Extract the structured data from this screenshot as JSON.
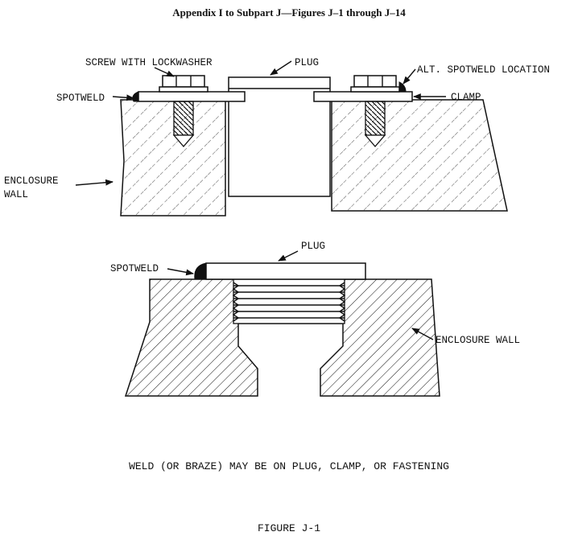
{
  "heading": "Appendix I to Subpart J—Figures J–1 through J–14",
  "upper_figure": {
    "labels": {
      "screw": "SCREW WITH LOCKWASHER",
      "plug": "PLUG",
      "alt_spotweld": "ALT. SPOTWELD LOCATION",
      "spotweld": "SPOTWELD",
      "clamp": "CLAMP",
      "enclosure_line1": "ENCLOSURE",
      "enclosure_line2": "WALL"
    }
  },
  "lower_figure": {
    "labels": {
      "plug": "PLUG",
      "spotweld": "SPOTWELD",
      "enclosure": "ENCLOSURE WALL"
    }
  },
  "note": "WELD (OR BRAZE) MAY BE ON PLUG, CLAMP, OR FASTENING",
  "figure_caption": "FIGURE J-1"
}
